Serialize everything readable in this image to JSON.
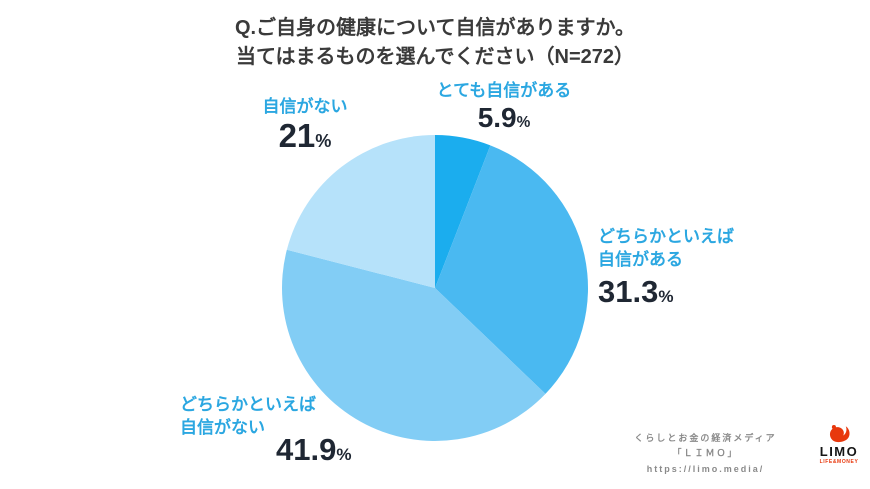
{
  "title": {
    "line1": "Q.ご自身の健康について自信がありますか。",
    "line2": "当てはまるものを選んでください（N=272）"
  },
  "chart_data": {
    "type": "pie",
    "title": "Q.ご自身の健康について自信がありますか。当てはまるものを選んでください",
    "sample_size_label": "N=272",
    "start_angle_deg": 0,
    "direction": "clockwise",
    "slices": [
      {
        "label": "とても自信がある",
        "value": 5.9,
        "unit": "%",
        "color": "#1badee"
      },
      {
        "label": "どちらかといえば自信がある",
        "value": 31.3,
        "unit": "%",
        "color": "#4ab9f1"
      },
      {
        "label": "どちらかといえば自信がない",
        "value": 41.9,
        "unit": "%",
        "color": "#82cdf5"
      },
      {
        "label": "自信がない",
        "value": 21,
        "unit": "%",
        "color": "#b6e2fa"
      }
    ]
  },
  "callouts": {
    "totemo": {
      "line1": "とても自信がある",
      "value": "5.9",
      "unit": "%"
    },
    "nai": {
      "line1": "自信がない",
      "value": "21",
      "unit": "%"
    },
    "dochira_aru": {
      "line1": "どちらかといえば",
      "line2": "自信がある",
      "value": "31.3",
      "unit": "%"
    },
    "dochira_nai": {
      "line1": "どちらかといえば",
      "line2": "自信がない",
      "value": "41.9",
      "unit": "%"
    }
  },
  "footer": {
    "credit_line1": "くらしとお金の経済メディア",
    "credit_line2": "「ＬＩＭＯ」",
    "credit_line3": "https://limo.media/",
    "logo_word": "LIMO",
    "logo_sub": "LIFE&MONEY"
  }
}
